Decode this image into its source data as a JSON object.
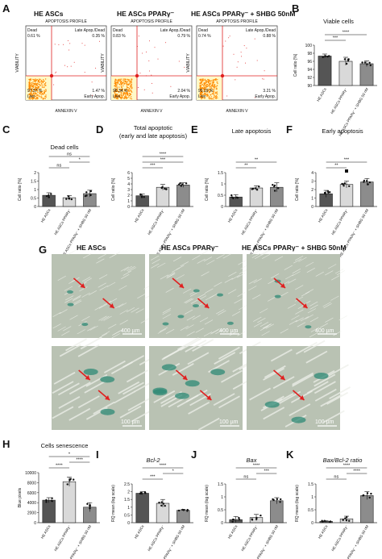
{
  "colors": {
    "dark": "#555555",
    "light": "#d9d9d9",
    "medium": "#8c8c8c",
    "white": "#ffffff",
    "flow_dots": "#ff8a00",
    "gate": "#e02020",
    "quadrant_fill": "#fff9c8",
    "arrow": "#e02020",
    "micro_bg": "#b9c2b3",
    "stain": "#2f8a76"
  },
  "panel_labels": {
    "A": "A",
    "B": "B",
    "C": "C",
    "D": "D",
    "E": "E",
    "F": "F",
    "G": "G",
    "H": "H",
    "I": "I",
    "J": "J",
    "K": "K"
  },
  "group_headers": {
    "a1": "HE ASCs",
    "a2": "HE ASCs PPARγ⁻",
    "a3": "HE ASCs PPARγ⁻ + SHBG 50nM",
    "g1": "HE ASCs",
    "g2": "HE ASCs PPARγ⁻",
    "g3": "HE ASCs PPARγ⁻ + SHBG 50nM"
  },
  "flow": {
    "profile_title": "APOPTOSIS PROFILE",
    "x_axis": "ANNEXIN V",
    "y_axis": "VIABILITY",
    "quadrant_names": {
      "dead": "Dead",
      "late": "Late Apop./Dead",
      "live": "Live",
      "early": "Early Apop."
    },
    "plots": [
      {
        "dead": "0.61 %",
        "late": "0.35 %",
        "live": "97.57 %",
        "early": "1.47 %"
      },
      {
        "dead": "0.83 %",
        "late": "0.79 %",
        "live": "96.34 %",
        "early": "2.04 %"
      },
      {
        "dead": "0.74 %",
        "late": "0.88 %",
        "live": "95.19 %",
        "early": "3.21 %"
      }
    ]
  },
  "x_tick_labels": [
    "HE ASCs",
    "HE ASCs PPARγ⁻",
    "HE ASCs PPARγ⁻ + SHBG 50 nM"
  ],
  "sig_symbols": {
    "p001": "***",
    "p0001": "****",
    "p01": "**",
    "p05": "*",
    "ns": "ns"
  },
  "scale_bars": {
    "top": "400 µm",
    "bottom": "100 µm"
  },
  "chart_data": [
    {
      "id": "B",
      "type": "bar",
      "title": "Viable cells",
      "ylabel": "Cell ratio [%]",
      "ylim": [
        90,
        100
      ],
      "yticks": [
        90,
        92,
        94,
        96,
        98,
        100
      ],
      "values": [
        97.3,
        96.0,
        95.4
      ],
      "sd": [
        0.5,
        1.0,
        0.7
      ],
      "sig": [
        [
          "p001",
          0,
          1
        ],
        [
          "p0001",
          0,
          2
        ]
      ]
    },
    {
      "id": "C",
      "type": "bar",
      "title": "Dead cells",
      "ylabel": "Cell ratio [%]",
      "ylim": [
        0,
        2.0
      ],
      "yticks": [
        0,
        0.5,
        1.0,
        1.5,
        2.0
      ],
      "values": [
        0.66,
        0.52,
        0.76
      ],
      "sd": [
        0.15,
        0.12,
        0.2
      ],
      "sig": [
        [
          "ns",
          0,
          1
        ],
        [
          "p05",
          1,
          2
        ],
        [
          "ns",
          0,
          2
        ]
      ]
    },
    {
      "id": "D",
      "type": "bar",
      "title": "Total apoptotic",
      "subtitle": "(early and late apoptosis)",
      "ylabel": "Cell ratio [%]",
      "ylim": [
        0,
        6
      ],
      "yticks": [
        0,
        1,
        2,
        3,
        4,
        5,
        6
      ],
      "values": [
        1.9,
        3.4,
        3.8
      ],
      "sd": [
        0.3,
        0.5,
        0.4
      ],
      "sig": [
        [
          "p001",
          0,
          1
        ],
        [
          "p001",
          0,
          2
        ],
        [
          "p0001",
          0,
          2
        ]
      ]
    },
    {
      "id": "E",
      "type": "bar",
      "title": "Late apoptosis",
      "ylabel": "Cell ratio [%]",
      "ylim": [
        0,
        1.5
      ],
      "yticks": [
        0,
        0.5,
        1.0,
        1.5
      ],
      "values": [
        0.42,
        0.82,
        0.85
      ],
      "sd": [
        0.1,
        0.1,
        0.2
      ],
      "sig": [
        [
          "p01",
          0,
          1
        ],
        [
          "p01",
          0,
          2
        ]
      ]
    },
    {
      "id": "F",
      "type": "bar",
      "title": "Early apoptosis",
      "ylabel": "Cell ratio [%]",
      "ylim": [
        0,
        4
      ],
      "yticks": [
        0,
        1,
        2,
        3,
        4
      ],
      "values": [
        1.5,
        2.6,
        2.9
      ],
      "sd": [
        0.4,
        0.4,
        0.4
      ],
      "sig": [
        [
          "p01",
          0,
          1
        ],
        [
          "p001",
          0,
          2
        ],
        [
          "sq",
          1,
          1
        ]
      ]
    },
    {
      "id": "H",
      "type": "bar",
      "title": "Cells senescence",
      "ylabel": "Blue pixels",
      "ylim": [
        0,
        10000
      ],
      "yticks": [
        0,
        2000,
        4000,
        6000,
        8000,
        10000
      ],
      "values": [
        4500,
        8200,
        3100
      ],
      "sd": [
        500,
        900,
        900
      ],
      "sig": [
        [
          "p0001",
          0,
          1
        ],
        [
          "p0001",
          1,
          2
        ],
        [
          "p05",
          0,
          2
        ]
      ]
    },
    {
      "id": "I",
      "type": "bar",
      "title": "Bcl-2",
      "title_italic": true,
      "ylabel": "RQ mean (log scale)",
      "ylim": [
        0,
        2.5
      ],
      "yticks": [
        0,
        0.5,
        1.0,
        1.5,
        2.0,
        2.5
      ],
      "values": [
        1.9,
        1.25,
        0.8
      ],
      "sd": [
        0.1,
        0.25,
        0.05
      ],
      "sig": [
        [
          "p001",
          0,
          1
        ],
        [
          "p05",
          1,
          2
        ],
        [
          "p0001",
          0,
          2
        ]
      ]
    },
    {
      "id": "J",
      "type": "bar",
      "title": "Bax",
      "title_italic": true,
      "ylabel": "RQ mean (log scale)",
      "ylim": [
        0,
        1.5
      ],
      "yticks": [
        0,
        0.5,
        1.0,
        1.5
      ],
      "values": [
        0.12,
        0.2,
        0.85
      ],
      "sd": [
        0.12,
        0.12,
        0.12
      ],
      "sig": [
        [
          "ns",
          0,
          1
        ],
        [
          "p001",
          1,
          2
        ],
        [
          "p0001",
          0,
          2
        ]
      ]
    },
    {
      "id": "K",
      "type": "bar",
      "title": "Bax/Bcl-2 ratio",
      "title_italic": true,
      "ylabel": "RQ mean (log scale)",
      "ylim": [
        0,
        1.5
      ],
      "yticks": [
        0,
        0.5,
        1.0,
        1.5
      ],
      "values": [
        0.05,
        0.15,
        1.05
      ],
      "sd": [
        0.03,
        0.1,
        0.15
      ],
      "sig": [
        [
          "ns",
          0,
          1
        ],
        [
          "p0001",
          1,
          2
        ],
        [
          "p0001",
          0,
          2
        ]
      ]
    }
  ]
}
